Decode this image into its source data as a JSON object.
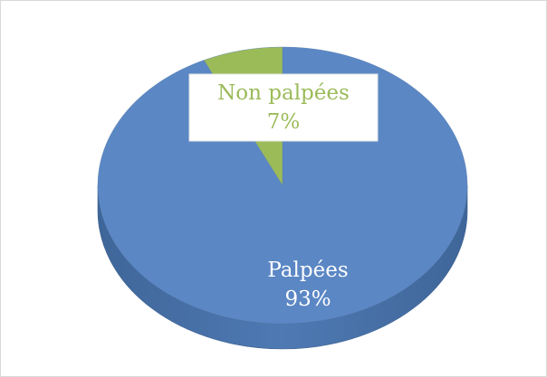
{
  "chart_data": {
    "type": "pie",
    "categories": [
      "Palpées",
      "Non palpées"
    ],
    "values": [
      93,
      7
    ],
    "value_labels": [
      "93%",
      "7%"
    ],
    "colors": [
      "#5b87c4",
      "#9bbb59"
    ]
  }
}
